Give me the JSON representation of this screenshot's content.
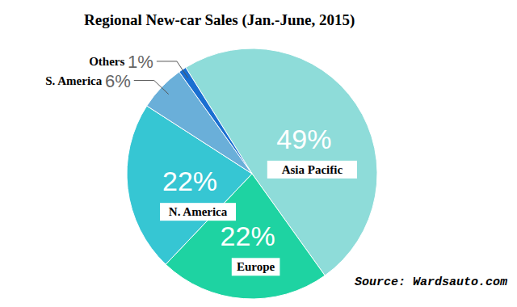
{
  "chart_data": {
    "type": "pie",
    "title": "Regional New-car Sales (Jan.-June, 2015)",
    "categories": [
      "Asia Pacific",
      "Europe",
      "N. America",
      "S. America",
      "Others"
    ],
    "values": [
      49,
      22,
      22,
      6,
      1
    ],
    "value_labels": [
      "49%",
      "22%",
      "22%",
      "6%",
      "1%"
    ],
    "colors": [
      "#8edcd9",
      "#1ed3a2",
      "#36c6d3",
      "#6aafd9",
      "#1a6fd1"
    ],
    "data_labels": true,
    "annotations": [
      "Source: Wardsauto.com"
    ]
  }
}
